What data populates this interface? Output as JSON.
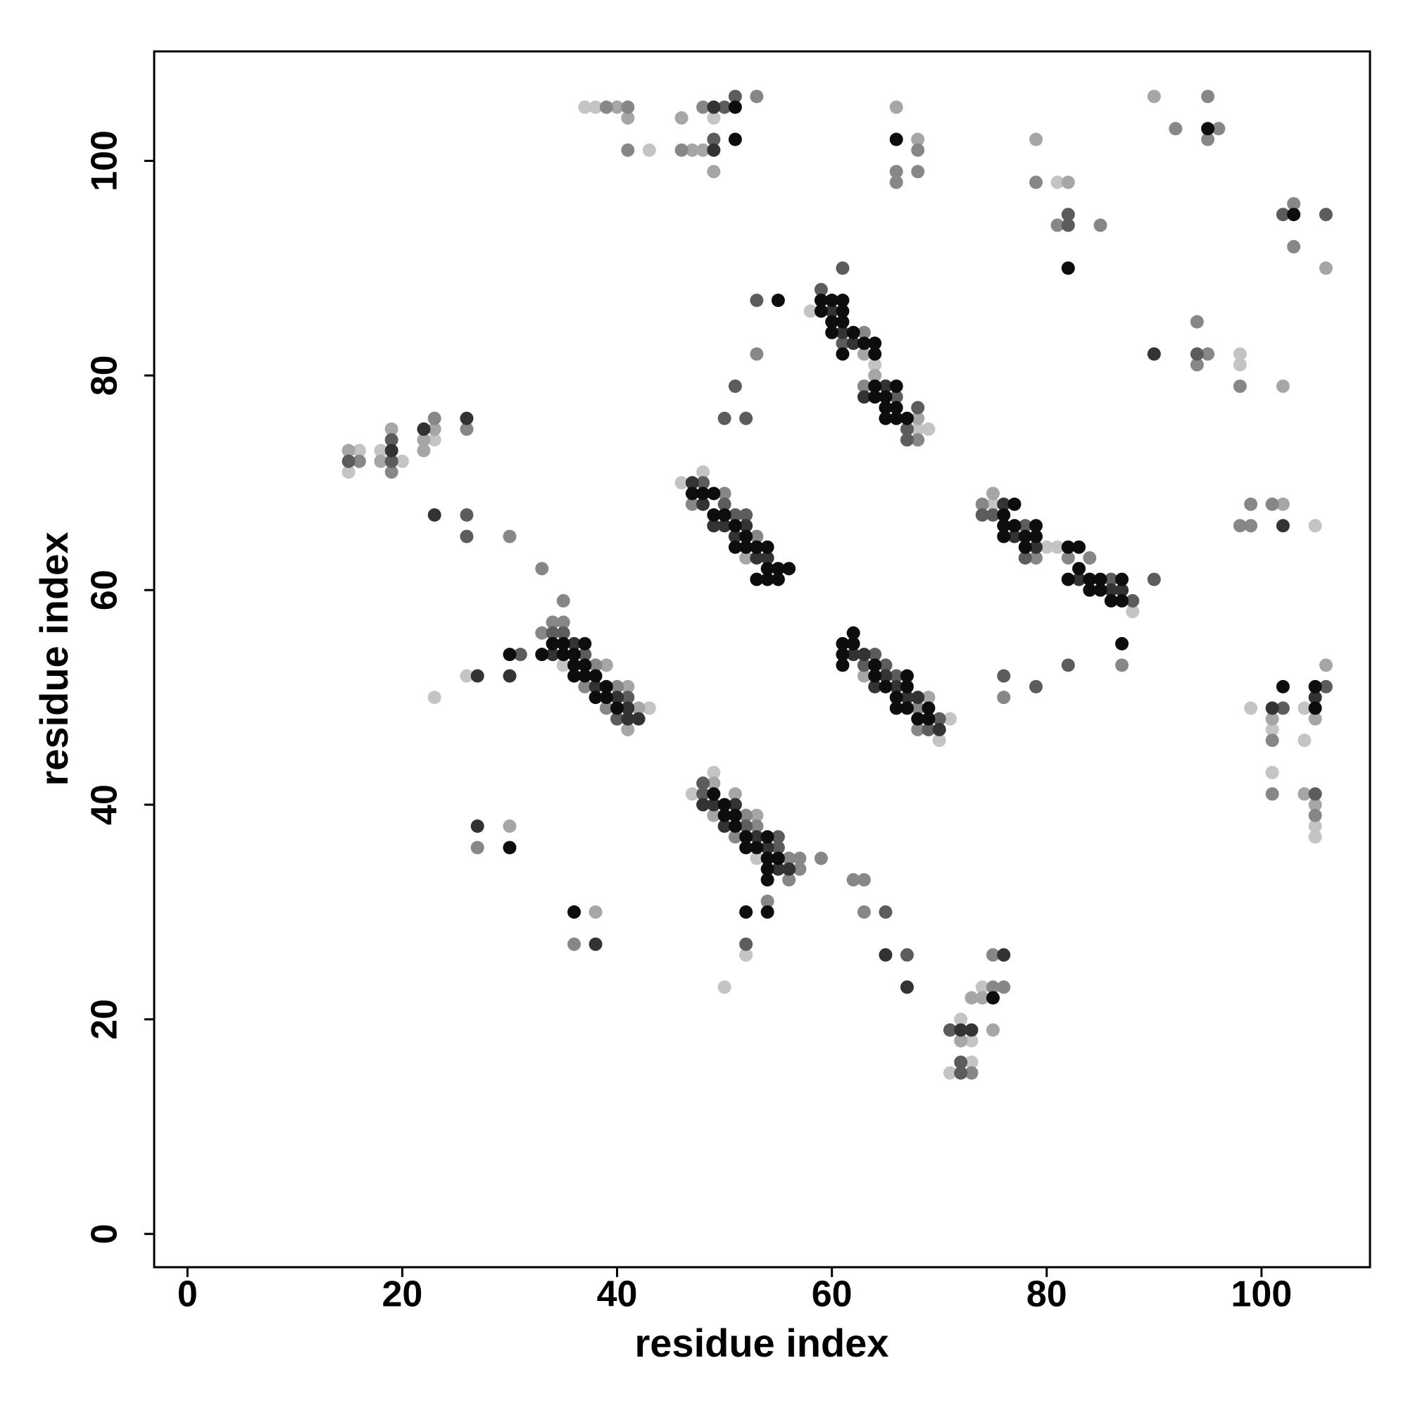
{
  "chart_data": {
    "type": "scatter",
    "xlabel": "residue index",
    "ylabel": "residue index",
    "xlim": [
      -3.1,
      110.1
    ],
    "ylim": [
      -3.1,
      110.2
    ],
    "xticks": [
      0,
      20,
      40,
      60,
      80,
      100
    ],
    "yticks": [
      0,
      20,
      40,
      60,
      80,
      100
    ],
    "series": [
      {
        "color": "#c4c4c4",
        "x": [
          37,
          38,
          43,
          49,
          81,
          98,
          98,
          105,
          58,
          64,
          68,
          69,
          15,
          16,
          18,
          20,
          23,
          46,
          48,
          75,
          80,
          81,
          88,
          35,
          43,
          26,
          23,
          70,
          71,
          99,
          101,
          101,
          104,
          104,
          105,
          105,
          47,
          49,
          53,
          52,
          50,
          71,
          72,
          73,
          73,
          74
        ],
        "values": [
          105,
          105,
          101,
          104,
          98,
          82,
          81,
          66,
          86,
          81,
          75,
          75,
          71,
          73,
          73,
          72,
          74,
          70,
          71,
          68,
          64,
          64,
          58,
          53,
          49,
          52,
          50,
          46,
          48,
          49,
          47,
          43,
          49,
          46,
          38,
          37,
          41,
          43,
          35,
          26,
          23,
          15,
          20,
          18,
          16,
          23
        ]
      },
      {
        "color": "#a6a6a6",
        "x": [
          40,
          41,
          46,
          47,
          48,
          49,
          66,
          68,
          79,
          82,
          90,
          102,
          106,
          102,
          64,
          68,
          15,
          18,
          19,
          22,
          22,
          23,
          52,
          75,
          63,
          39,
          41,
          41,
          42,
          63,
          69,
          101,
          104,
          105,
          105,
          106,
          49,
          49,
          51,
          53,
          30,
          38,
          72,
          73,
          74,
          75
        ],
        "values": [
          105,
          104,
          104,
          101,
          101,
          99,
          105,
          102,
          102,
          98,
          106,
          79,
          90,
          68,
          80,
          76,
          73,
          72,
          75,
          74,
          73,
          75,
          63,
          69,
          82,
          53,
          51,
          47,
          49,
          52,
          50,
          48,
          41,
          48,
          40,
          53,
          42,
          39,
          41,
          39,
          38,
          30,
          18,
          22,
          22,
          19
        ]
      },
      {
        "color": "#878787",
        "x": [
          39,
          41,
          41,
          46,
          48,
          53,
          66,
          66,
          68,
          68,
          79,
          81,
          85,
          92,
          95,
          95,
          96,
          103,
          103,
          94,
          94,
          95,
          98,
          98,
          99,
          99,
          101,
          63,
          63,
          68,
          53,
          16,
          19,
          23,
          26,
          30,
          33,
          47,
          50,
          53,
          74,
          79,
          82,
          84,
          87,
          33,
          34,
          35,
          35,
          37,
          38,
          39,
          40,
          68,
          68,
          76,
          101,
          101,
          105,
          51,
          52,
          53,
          54,
          56,
          56,
          57,
          57,
          59,
          62,
          63,
          63,
          27,
          36,
          73,
          75,
          75,
          76
        ],
        "values": [
          105,
          105,
          101,
          101,
          105,
          106,
          99,
          98,
          101,
          99,
          98,
          94,
          94,
          103,
          106,
          102,
          103,
          96,
          92,
          85,
          81,
          82,
          79,
          66,
          68,
          66,
          68,
          84,
          79,
          74,
          82,
          72,
          71,
          76,
          75,
          65,
          62,
          68,
          69,
          65,
          68,
          63,
          63,
          63,
          53,
          56,
          57,
          59,
          57,
          51,
          53,
          49,
          51,
          49,
          47,
          50,
          46,
          41,
          39,
          37,
          39,
          38,
          31,
          35,
          33,
          35,
          34,
          35,
          33,
          33,
          30,
          36,
          27,
          15,
          26,
          23,
          23
        ]
      },
      {
        "color": "#5c5c5c",
        "x": [
          49,
          50,
          51,
          82,
          82,
          102,
          106,
          94,
          59,
          61,
          61,
          67,
          67,
          68,
          53,
          51,
          50,
          52,
          15,
          19,
          19,
          26,
          26,
          48,
          50,
          51,
          52,
          74,
          75,
          78,
          78,
          86,
          88,
          90,
          34,
          35,
          37,
          40,
          41,
          31,
          63,
          64,
          65,
          66,
          69,
          70,
          76,
          79,
          82,
          102,
          105,
          106,
          48,
          48,
          52,
          55,
          55,
          52,
          65,
          67,
          71,
          72,
          72,
          66
        ],
        "values": [
          102,
          105,
          106,
          95,
          94,
          95,
          95,
          82,
          88,
          90,
          83,
          75,
          74,
          77,
          87,
          79,
          76,
          76,
          72,
          74,
          72,
          67,
          65,
          70,
          68,
          67,
          67,
          67,
          67,
          66,
          63,
          61,
          59,
          61,
          56,
          56,
          54,
          48,
          50,
          54,
          53,
          54,
          53,
          52,
          47,
          48,
          52,
          51,
          53,
          49,
          41,
          51,
          42,
          41,
          38,
          37,
          36,
          27,
          30,
          26,
          19,
          16,
          15,
          78
        ]
      },
      {
        "color": "#333333",
        "x": [
          49,
          49,
          90,
          102,
          61,
          62,
          63,
          65,
          19,
          22,
          26,
          23,
          47,
          48,
          49,
          50,
          51,
          52,
          53,
          54,
          76,
          77,
          79,
          83,
          86,
          87,
          34,
          36,
          38,
          40,
          41,
          41,
          42,
          30,
          27,
          62,
          63,
          64,
          65,
          66,
          67,
          68,
          70,
          101,
          105,
          48,
          49,
          50,
          51,
          53,
          54,
          55,
          56,
          65,
          67,
          27,
          38,
          72,
          73,
          76,
          60
        ],
        "values": [
          105,
          101,
          82,
          66,
          84,
          83,
          78,
          79,
          73,
          75,
          76,
          67,
          70,
          68,
          66,
          66,
          65,
          66,
          63,
          63,
          68,
          65,
          64,
          61,
          60,
          60,
          54,
          55,
          51,
          50,
          49,
          48,
          48,
          52,
          52,
          54,
          54,
          51,
          52,
          51,
          50,
          50,
          47,
          49,
          50,
          40,
          40,
          38,
          40,
          37,
          36,
          34,
          34,
          26,
          23,
          38,
          27,
          19,
          19,
          26,
          86
        ]
      },
      {
        "color": "#0d0d0d",
        "x": [
          51,
          51,
          66,
          82,
          95,
          103,
          59,
          59,
          60,
          60,
          60,
          61,
          61,
          61,
          61,
          62,
          63,
          64,
          64,
          64,
          64,
          65,
          65,
          65,
          66,
          66,
          66,
          67,
          55,
          47,
          48,
          49,
          49,
          50,
          51,
          51,
          52,
          52,
          53,
          53,
          54,
          54,
          54,
          55,
          55,
          56,
          76,
          76,
          76,
          77,
          77,
          78,
          78,
          79,
          79,
          82,
          82,
          83,
          83,
          84,
          84,
          85,
          85,
          86,
          87,
          87,
          87,
          33,
          34,
          35,
          35,
          36,
          36,
          36,
          37,
          37,
          37,
          38,
          38,
          39,
          39,
          40,
          30,
          61,
          61,
          61,
          62,
          62,
          64,
          64,
          65,
          66,
          66,
          67,
          67,
          67,
          68,
          69,
          69,
          102,
          105,
          105,
          49,
          50,
          50,
          51,
          51,
          52,
          52,
          53,
          54,
          54,
          54,
          54,
          54,
          55,
          52,
          30,
          36,
          75
        ],
        "values": [
          105,
          102,
          102,
          90,
          103,
          95,
          87,
          86,
          87,
          85,
          84,
          87,
          86,
          85,
          82,
          84,
          83,
          83,
          82,
          79,
          78,
          78,
          77,
          76,
          79,
          77,
          76,
          76,
          87,
          69,
          69,
          69,
          67,
          67,
          66,
          64,
          65,
          64,
          64,
          61,
          64,
          62,
          61,
          62,
          61,
          62,
          67,
          66,
          65,
          68,
          66,
          65,
          64,
          66,
          65,
          64,
          61,
          64,
          62,
          61,
          60,
          61,
          60,
          59,
          61,
          59,
          55,
          54,
          55,
          55,
          54,
          54,
          53,
          52,
          55,
          53,
          52,
          52,
          50,
          51,
          50,
          49,
          54,
          55,
          54,
          53,
          56,
          55,
          53,
          52,
          51,
          50,
          49,
          52,
          51,
          49,
          48,
          49,
          48,
          51,
          51,
          49,
          41,
          40,
          39,
          39,
          38,
          37,
          36,
          36,
          37,
          35,
          34,
          33,
          30,
          35,
          30,
          36,
          30,
          22
        ]
      }
    ]
  }
}
